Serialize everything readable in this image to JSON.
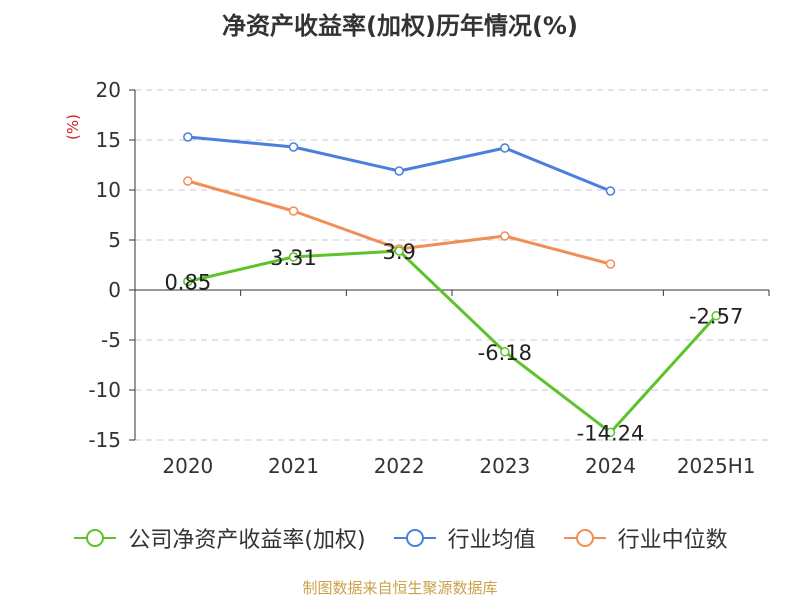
{
  "chart_data": {
    "type": "line",
    "title": "净资产收益率(加权)历年情况(%)",
    "ylabel": "(%)",
    "categories": [
      "2020",
      "2021",
      "2022",
      "2023",
      "2024",
      "2025H1"
    ],
    "ylim": [
      -15,
      20
    ],
    "yticks": [
      "20",
      "15",
      "10",
      "5",
      "0",
      "-5",
      "-10",
      "-15"
    ],
    "grid": true,
    "legend_position": "bottom",
    "series": [
      {
        "name": "公司净资产收益率(加权)",
        "color": "#5cc32a",
        "values": [
          0.85,
          3.31,
          3.9,
          -6.18,
          -14.24,
          -2.57
        ],
        "labels": [
          "0.85",
          "3.31",
          "3.9",
          "-6.18",
          "-14.24",
          "-2.57"
        ]
      },
      {
        "name": "行业均值",
        "color": "#4a7fdc",
        "values": [
          15.3,
          14.3,
          11.9,
          14.2,
          9.9,
          null
        ]
      },
      {
        "name": "行业中位数",
        "color": "#f28e55",
        "values": [
          10.9,
          7.9,
          4.1,
          5.4,
          2.6,
          null
        ]
      }
    ]
  },
  "source": "制图数据来自恒生聚源数据库"
}
